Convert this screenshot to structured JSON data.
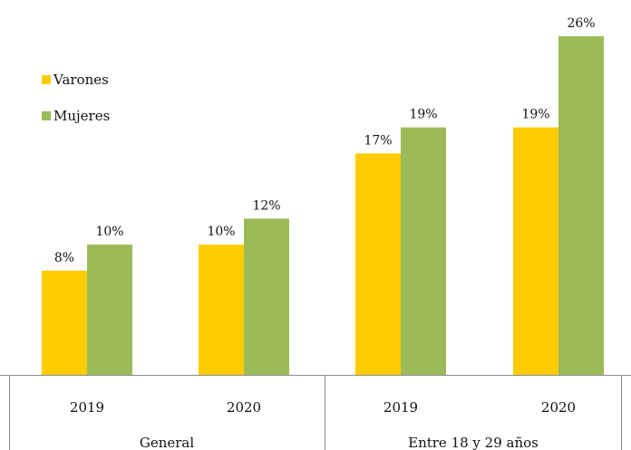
{
  "chart_data": {
    "type": "bar",
    "groups": [
      "General",
      "Entre 18 y 29 años"
    ],
    "categories": [
      "2019",
      "2020",
      "2019",
      "2020"
    ],
    "series": [
      {
        "name": "Varones",
        "color": "#FFCC00",
        "values": [
          8,
          10,
          17,
          19
        ],
        "labels": [
          "8%",
          "10%",
          "17%",
          "19%"
        ]
      },
      {
        "name": "Mujeres",
        "color": "#9BBB59",
        "values": [
          10,
          12,
          19,
          26
        ],
        "labels": [
          "10%",
          "12%",
          "19%",
          "26%"
        ]
      }
    ],
    "ylim": [
      0,
      26
    ],
    "grid": false,
    "legend_position": "top-left"
  }
}
